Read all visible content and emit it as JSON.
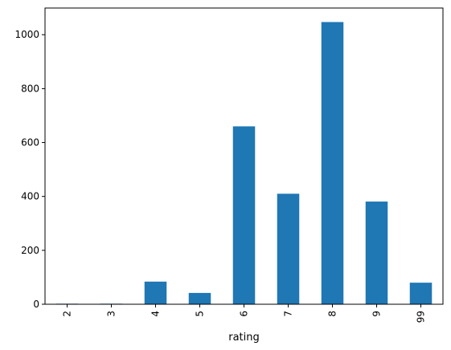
{
  "chart_data": {
    "type": "bar",
    "categories": [
      "2",
      "3",
      "4",
      "5",
      "6",
      "7",
      "8",
      "9",
      "99"
    ],
    "values": [
      2,
      2,
      84,
      42,
      660,
      410,
      1047,
      381,
      80
    ],
    "xlabel": "rating",
    "ylabel": "",
    "ylim": [
      0,
      1099
    ],
    "yticks": [
      0,
      200,
      400,
      600,
      800,
      1000
    ],
    "x_tick_rotation": "vertical",
    "grid": false,
    "legend": "none",
    "bar_color": "#1f77b4"
  }
}
